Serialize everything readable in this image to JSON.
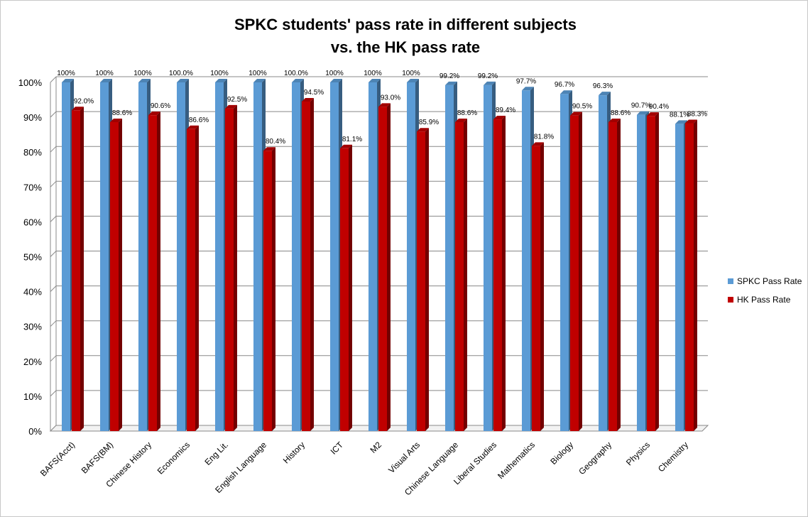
{
  "chart_data": {
    "type": "bar",
    "title": [
      "SPKC students' pass rate in different subjects",
      "vs. the HK pass rate"
    ],
    "categories": [
      "BAFS(Acct)",
      "BAFS(BM)",
      "Chinese History",
      "Economics",
      "Eng Lit.",
      "English Language",
      "History",
      "ICT",
      "M2",
      "Visual Arts",
      "Chinese Language",
      "Liberal Studies",
      "Mathematics",
      "Biology",
      "Geography",
      "Physics",
      "Chemistry"
    ],
    "series": [
      {
        "name": "SPKC Pass Rate",
        "color": "#5B9BD5",
        "values": [
          100,
          100,
          100,
          100,
          100,
          100,
          100,
          100,
          100,
          100,
          99.2,
          99.2,
          97.7,
          96.7,
          96.3,
          90.7,
          88.1
        ],
        "labels": [
          "100%",
          "100%",
          "100%",
          "100.0%",
          "100%",
          "100%",
          "100.0%",
          "100%",
          "100%",
          "100%",
          "99.2%",
          "99.2%",
          "97.7%",
          "96.7%",
          "96.3%",
          "90.7%",
          "88.1%"
        ]
      },
      {
        "name": "HK Pass Rate",
        "color": "#C00000",
        "values": [
          92.0,
          88.6,
          90.6,
          86.6,
          92.5,
          80.4,
          94.5,
          81.1,
          93.0,
          85.9,
          88.6,
          89.4,
          81.8,
          90.5,
          88.6,
          90.4,
          88.3
        ],
        "labels": [
          "92.0%",
          "88.6%",
          "90.6%",
          "86.6%",
          "92.5%",
          "80.4%",
          "94.5%",
          "81.1%",
          "93.0%",
          "85.9%",
          "88.6%",
          "89.4%",
          "81.8%",
          "90.5%",
          "88.6%",
          "90.4%",
          "88.3%"
        ]
      }
    ],
    "yticks": [
      "0%",
      "10%",
      "20%",
      "30%",
      "40%",
      "50%",
      "60%",
      "70%",
      "80%",
      "90%",
      "100%"
    ],
    "ylim": [
      0,
      100
    ],
    "xlabel": "",
    "ylabel": "",
    "grid": true,
    "legend_position": "right"
  }
}
